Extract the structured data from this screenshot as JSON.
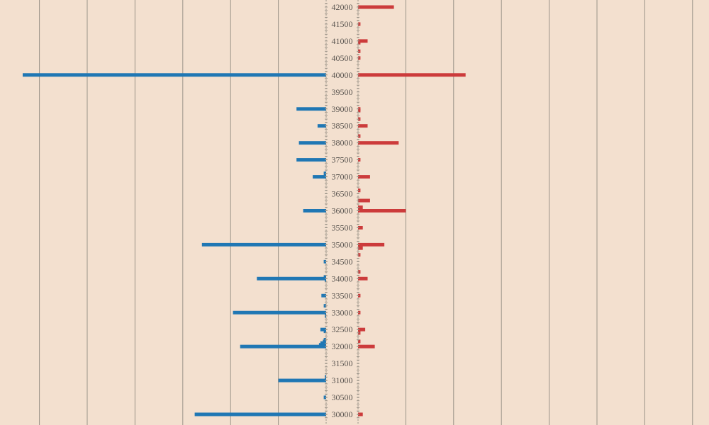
{
  "chart_data": {
    "type": "bar",
    "orientation": "horizontal",
    "title": "",
    "xlabel": "",
    "ylabel": "",
    "grid": true,
    "y_ticks": [
      "30000",
      "30500",
      "31000",
      "31500",
      "32000",
      "32500",
      "33000",
      "33500",
      "34000",
      "34500",
      "35000",
      "35500",
      "36000",
      "36500",
      "37000",
      "37500",
      "38000",
      "38500",
      "39000",
      "39500",
      "40000",
      "40500",
      "41000",
      "41500",
      "42000"
    ],
    "ylim": [
      30000,
      42000
    ],
    "left_series": {
      "color": "#1f77b4",
      "points": [
        {
          "y": 30000,
          "value": 2.75
        },
        {
          "y": 30500,
          "value": 0.05
        },
        {
          "y": 31000,
          "value": 1.0
        },
        {
          "y": 31100,
          "value": 0.03
        },
        {
          "y": 32000,
          "value": 1.8
        },
        {
          "y": 32050,
          "value": 0.15
        },
        {
          "y": 32100,
          "value": 0.12
        },
        {
          "y": 32150,
          "value": 0.07
        },
        {
          "y": 32200,
          "value": 0.05
        },
        {
          "y": 32450,
          "value": 0.05
        },
        {
          "y": 32500,
          "value": 0.12
        },
        {
          "y": 32900,
          "value": 0.03
        },
        {
          "y": 33000,
          "value": 1.95
        },
        {
          "y": 33200,
          "value": 0.05
        },
        {
          "y": 33500,
          "value": 0.1
        },
        {
          "y": 33950,
          "value": 0.03
        },
        {
          "y": 34000,
          "value": 1.45
        },
        {
          "y": 34050,
          "value": 0.05
        },
        {
          "y": 34500,
          "value": 0.05
        },
        {
          "y": 35000,
          "value": 2.6
        },
        {
          "y": 36000,
          "value": 0.48
        },
        {
          "y": 37000,
          "value": 0.28
        },
        {
          "y": 37100,
          "value": 0.05
        },
        {
          "y": 37500,
          "value": 0.62
        },
        {
          "y": 38000,
          "value": 0.57
        },
        {
          "y": 38500,
          "value": 0.18
        },
        {
          "y": 39000,
          "value": 0.62
        },
        {
          "y": 40000,
          "value": 6.35
        }
      ]
    },
    "right_series": {
      "color": "#cc3b3b",
      "points": [
        {
          "y": 30000,
          "value": 0.1
        },
        {
          "y": 32000,
          "value": 0.35
        },
        {
          "y": 32150,
          "value": 0.05
        },
        {
          "y": 32400,
          "value": 0.05
        },
        {
          "y": 32500,
          "value": 0.15
        },
        {
          "y": 33000,
          "value": 0.05
        },
        {
          "y": 33500,
          "value": 0.05
        },
        {
          "y": 34000,
          "value": 0.2
        },
        {
          "y": 34200,
          "value": 0.05
        },
        {
          "y": 34700,
          "value": 0.05
        },
        {
          "y": 34900,
          "value": 0.1
        },
        {
          "y": 35000,
          "value": 0.55
        },
        {
          "y": 35500,
          "value": 0.1
        },
        {
          "y": 36000,
          "value": 1.0
        },
        {
          "y": 36100,
          "value": 0.1
        },
        {
          "y": 36300,
          "value": 0.25
        },
        {
          "y": 36600,
          "value": 0.05
        },
        {
          "y": 37000,
          "value": 0.25
        },
        {
          "y": 37500,
          "value": 0.05
        },
        {
          "y": 38000,
          "value": 0.85
        },
        {
          "y": 38200,
          "value": 0.05
        },
        {
          "y": 38500,
          "value": 0.2
        },
        {
          "y": 38700,
          "value": 0.05
        },
        {
          "y": 38950,
          "value": 0.05
        },
        {
          "y": 39000,
          "value": 0.05
        },
        {
          "y": 40000,
          "value": 2.25
        },
        {
          "y": 40500,
          "value": 0.05
        },
        {
          "y": 40700,
          "value": 0.05
        },
        {
          "y": 40950,
          "value": 0.05
        },
        {
          "y": 41000,
          "value": 0.2
        },
        {
          "y": 41500,
          "value": 0.05
        },
        {
          "y": 42000,
          "value": 0.75
        }
      ]
    }
  }
}
